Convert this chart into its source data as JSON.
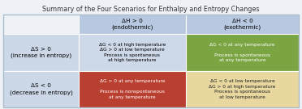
{
  "title": "Summary of the Four Scenarios for Enthalpy and Entropy Changes",
  "col_headers": [
    "ΔH > 0\n(endothermic)",
    "ΔH < 0\n(exothermic)"
  ],
  "row_headers": [
    "ΔS > 0\n(increase in entropy)",
    "ΔS < 0\n(decrease in entropy)"
  ],
  "cells": [
    [
      "ΔG < 0 at high temperature\nΔG > 0 at low temperature\nProcess is spontaneous\nat high temperature",
      "ΔG < 0 at any temperature\n\nProcess is spontaneous\nat any temperature"
    ],
    [
      "ΔG > 0 at any temperature\n\nProcess is nonspontaneous\nat any temperature",
      "ΔG < 0 at low temperature\nΔG > 0 at high temperature\nProcess is spontaneous\nat low temperature"
    ]
  ],
  "cell_colors": [
    [
      "#cdd8e8",
      "#7ba542"
    ],
    [
      "#b94030",
      "#e8d8a0"
    ]
  ],
  "cell_text_colors": [
    [
      "#000000",
      "#ffffff"
    ],
    [
      "#ffffff",
      "#222222"
    ]
  ],
  "header_bg": "#b8c8e0",
  "row_header_bg": "#ccd8e8",
  "title_fontsize": 5.8,
  "header_fontsize": 5.2,
  "row_header_fontsize": 5.2,
  "cell_fontsize": 4.2,
  "background_color": "#eef2f7",
  "border_color": "#aabbcc"
}
